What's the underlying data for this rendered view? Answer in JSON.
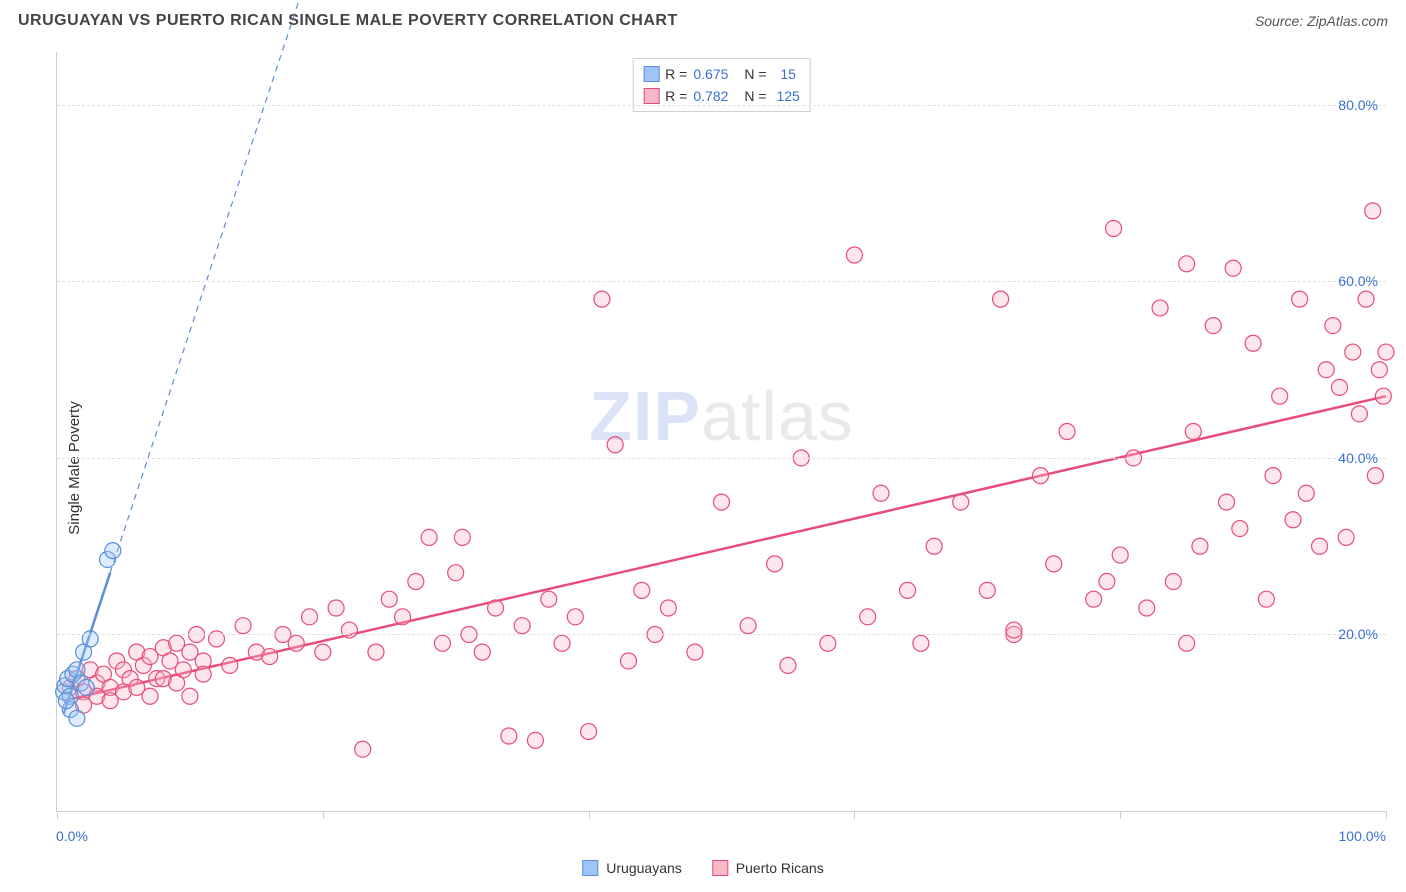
{
  "header": {
    "title": "URUGUAYAN VS PUERTO RICAN SINGLE MALE POVERTY CORRELATION CHART",
    "source_label": "Source: ",
    "source_value": "ZipAtlas.com"
  },
  "ylabel": "Single Male Poverty",
  "watermark": {
    "zip": "ZIP",
    "atlas": "atlas"
  },
  "chart": {
    "type": "scatter",
    "xlim": [
      0,
      100
    ],
    "ylim": [
      0,
      86
    ],
    "background_color": "#ffffff",
    "grid_color": "#e0e0e0",
    "yticks": [
      20,
      40,
      60,
      80
    ],
    "ytick_labels": [
      "20.0%",
      "40.0%",
      "60.0%",
      "80.0%"
    ],
    "xticks": [
      0,
      20,
      40,
      60,
      80,
      100
    ],
    "xtick_label_left": "0.0%",
    "xtick_label_right": "100.0%",
    "marker_radius": 8,
    "marker_fill_opacity": 0.35,
    "marker_stroke_width": 1.2,
    "series": [
      {
        "name": "Uruguayans",
        "color_fill": "#9fc5f8",
        "color_stroke": "#5a8fd6",
        "r": 0.675,
        "n": 15,
        "trend": {
          "x1": 0.5,
          "y1": 11,
          "x2": 4,
          "y2": 27,
          "dash_x2": 20,
          "dash_y2": 100
        },
        "points": [
          [
            0.5,
            13.5
          ],
          [
            0.6,
            14.2
          ],
          [
            0.8,
            15.0
          ],
          [
            1.0,
            13.0
          ],
          [
            1.2,
            15.5
          ],
          [
            1.5,
            16.0
          ],
          [
            1.8,
            14.5
          ],
          [
            2.0,
            18.0
          ],
          [
            2.2,
            14.0
          ],
          [
            2.5,
            19.5
          ],
          [
            1.0,
            11.5
          ],
          [
            0.7,
            12.5
          ],
          [
            3.8,
            28.5
          ],
          [
            4.2,
            29.5
          ],
          [
            1.5,
            10.5
          ]
        ]
      },
      {
        "name": "Puerto Ricans",
        "color_fill": "#f8b8c8",
        "color_stroke": "#e84c7a",
        "r": 0.782,
        "n": 125,
        "trend": {
          "x1": 0.5,
          "y1": 12.5,
          "x2": 100,
          "y2": 47
        },
        "points": [
          [
            1,
            14
          ],
          [
            1.5,
            15
          ],
          [
            2,
            13.5
          ],
          [
            2.5,
            16
          ],
          [
            3,
            14.5
          ],
          [
            3.5,
            15.5
          ],
          [
            4,
            14
          ],
          [
            4.5,
            17
          ],
          [
            5,
            16
          ],
          [
            5.5,
            15
          ],
          [
            6,
            18
          ],
          [
            6.5,
            16.5
          ],
          [
            7,
            17.5
          ],
          [
            7.5,
            15
          ],
          [
            8,
            18.5
          ],
          [
            8.5,
            17
          ],
          [
            9,
            19
          ],
          [
            9.5,
            16
          ],
          [
            10,
            18
          ],
          [
            10.5,
            20
          ],
          [
            11,
            17
          ],
          [
            12,
            19.5
          ],
          [
            13,
            16.5
          ],
          [
            14,
            21
          ],
          [
            15,
            18
          ],
          [
            16,
            17.5
          ],
          [
            17,
            20
          ],
          [
            18,
            19
          ],
          [
            19,
            22
          ],
          [
            20,
            18
          ],
          [
            21,
            23
          ],
          [
            22,
            20.5
          ],
          [
            23,
            7
          ],
          [
            24,
            18
          ],
          [
            25,
            24
          ],
          [
            26,
            22
          ],
          [
            27,
            26
          ],
          [
            28,
            31
          ],
          [
            29,
            19
          ],
          [
            30,
            27
          ],
          [
            30.5,
            31
          ],
          [
            31,
            20
          ],
          [
            32,
            18
          ],
          [
            33,
            23
          ],
          [
            34,
            8.5
          ],
          [
            35,
            21
          ],
          [
            36,
            8
          ],
          [
            37,
            24
          ],
          [
            38,
            19
          ],
          [
            39,
            22
          ],
          [
            40,
            9
          ],
          [
            41,
            58
          ],
          [
            42,
            41.5
          ],
          [
            43,
            17
          ],
          [
            44,
            25
          ],
          [
            45,
            20
          ],
          [
            46,
            23
          ],
          [
            48,
            18
          ],
          [
            50,
            35
          ],
          [
            52,
            21
          ],
          [
            54,
            28
          ],
          [
            55,
            16.5
          ],
          [
            56,
            40
          ],
          [
            58,
            19
          ],
          [
            60,
            63
          ],
          [
            61,
            22
          ],
          [
            62,
            36
          ],
          [
            64,
            25
          ],
          [
            65,
            19
          ],
          [
            66,
            30
          ],
          [
            68,
            35
          ],
          [
            70,
            25
          ],
          [
            71,
            58
          ],
          [
            72,
            20
          ],
          [
            74,
            38
          ],
          [
            75,
            28
          ],
          [
            76,
            43
          ],
          [
            78,
            24
          ],
          [
            79,
            26
          ],
          [
            79.5,
            66
          ],
          [
            80,
            29
          ],
          [
            81,
            40
          ],
          [
            82,
            23
          ],
          [
            83,
            57
          ],
          [
            84,
            26
          ],
          [
            85,
            62
          ],
          [
            85.5,
            43
          ],
          [
            86,
            30
          ],
          [
            87,
            55
          ],
          [
            88,
            35
          ],
          [
            88.5,
            61.5
          ],
          [
            89,
            32
          ],
          [
            90,
            53
          ],
          [
            91,
            24
          ],
          [
            91.5,
            38
          ],
          [
            92,
            47
          ],
          [
            93,
            33
          ],
          [
            93.5,
            58
          ],
          [
            94,
            36
          ],
          [
            95,
            30
          ],
          [
            95.5,
            50
          ],
          [
            96,
            55
          ],
          [
            96.5,
            48
          ],
          [
            97,
            31
          ],
          [
            97.5,
            52
          ],
          [
            98,
            45
          ],
          [
            98.5,
            58
          ],
          [
            99,
            68
          ],
          [
            99.2,
            38
          ],
          [
            99.5,
            50
          ],
          [
            99.8,
            47
          ],
          [
            100,
            52
          ],
          [
            2,
            12
          ],
          [
            3,
            13
          ],
          [
            4,
            12.5
          ],
          [
            5,
            13.5
          ],
          [
            6,
            14
          ],
          [
            7,
            13
          ],
          [
            8,
            15
          ],
          [
            9,
            14.5
          ],
          [
            10,
            13
          ],
          [
            11,
            15.5
          ],
          [
            85,
            19
          ],
          [
            72,
            20.5
          ]
        ]
      }
    ]
  },
  "legend_bottom": [
    {
      "label": "Uruguayans",
      "fill": "#9fc5f8",
      "stroke": "#5a8fd6"
    },
    {
      "label": "Puerto Ricans",
      "fill": "#f8b8c8",
      "stroke": "#e84c7a"
    }
  ],
  "legend_top": {
    "r_label": "R =",
    "n_label": "N ="
  }
}
